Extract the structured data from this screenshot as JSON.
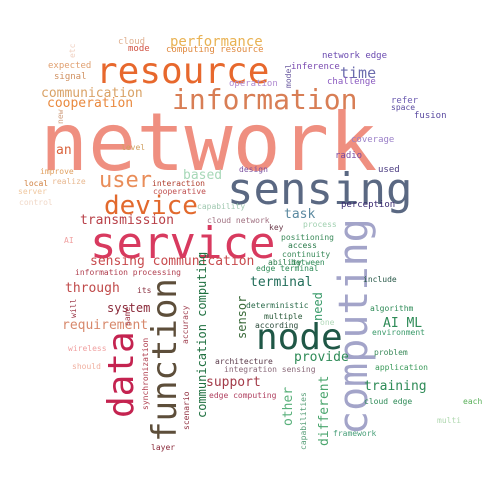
{
  "words": [
    {
      "text": "network",
      "color": "#ef8f80"
    },
    {
      "text": "sensing",
      "color": "#5a6882"
    },
    {
      "text": "service",
      "color": "#d83a5f"
    },
    {
      "text": "computing",
      "color": "#a3a4c9"
    },
    {
      "text": "resource",
      "color": "#e7682d"
    },
    {
      "text": "information",
      "color": "#d87e55"
    },
    {
      "text": "data",
      "color": "#c42350"
    },
    {
      "text": "function",
      "color": "#5d4e3a"
    },
    {
      "text": "node",
      "color": "#1f5746"
    },
    {
      "text": "device",
      "color": "#e2692d"
    },
    {
      "text": "user",
      "color": "#e98d59"
    },
    {
      "text": "performance",
      "color": "#e9b253"
    },
    {
      "text": "communication",
      "color": "#d9a266"
    },
    {
      "text": "cooperation",
      "color": "#e9893e"
    },
    {
      "text": "time",
      "color": "#6c6cae"
    },
    {
      "text": "an",
      "color": "#d9633d"
    },
    {
      "text": "sensing communication",
      "color": "#c84b4e"
    },
    {
      "text": "transmission",
      "color": "#b84048"
    },
    {
      "text": "task",
      "color": "#5a89a0"
    },
    {
      "text": "based",
      "color": "#a7d8b8"
    },
    {
      "text": "terminal",
      "color": "#236e5a"
    },
    {
      "text": "through",
      "color": "#c04a4a"
    },
    {
      "text": "system",
      "color": "#8a2a3a"
    },
    {
      "text": "requirement",
      "color": "#d7886b"
    },
    {
      "text": "AI ML",
      "color": "#2e8b57"
    },
    {
      "text": "communication computing",
      "color": "#1f7040"
    },
    {
      "text": "provide",
      "color": "#2e8b57"
    },
    {
      "text": "support",
      "color": "#a33b49"
    },
    {
      "text": "training",
      "color": "#2e8b57"
    },
    {
      "text": "other",
      "color": "#58b07a"
    },
    {
      "text": "different",
      "color": "#4aa56d"
    },
    {
      "text": "need",
      "color": "#3a9b6a"
    },
    {
      "text": "sensor",
      "color": "#3a6a3a"
    },
    {
      "text": "coverage",
      "color": "#9b80c8"
    },
    {
      "text": "radio",
      "color": "#7a4aa0"
    },
    {
      "text": "used",
      "color": "#4a3a80"
    },
    {
      "text": "perception",
      "color": "#3a2a70"
    },
    {
      "text": "fusion",
      "color": "#5a4aa0"
    },
    {
      "text": "refer",
      "color": "#6a5ab0"
    },
    {
      "text": "space",
      "color": "#5a4aa0"
    },
    {
      "text": "network edge",
      "color": "#6a4ab0"
    },
    {
      "text": "inference",
      "color": "#7a4ab0"
    },
    {
      "text": "challenge",
      "color": "#8a5ac0"
    },
    {
      "text": "operation",
      "color": "#b08ad0"
    },
    {
      "text": "model",
      "color": "#6a5aa0"
    },
    {
      "text": "cloud",
      "color": "#e0b090"
    },
    {
      "text": "mode",
      "color": "#d05040"
    },
    {
      "text": "computing resource",
      "color": "#e08a40"
    },
    {
      "text": "expected",
      "color": "#e0a070"
    },
    {
      "text": "signal",
      "color": "#d09060"
    },
    {
      "text": "etc",
      "color": "#f0d0c0"
    },
    {
      "text": "new",
      "color": "#d0a080"
    },
    {
      "text": "level",
      "color": "#d0a060"
    },
    {
      "text": "improve",
      "color": "#e0a060"
    },
    {
      "text": "local",
      "color": "#d08040"
    },
    {
      "text": "realize",
      "color": "#e8b890"
    },
    {
      "text": "server",
      "color": "#f0c8a0"
    },
    {
      "text": "control",
      "color": "#f0d8c8"
    },
    {
      "text": "interaction",
      "color": "#b04030"
    },
    {
      "text": "cooperative",
      "color": "#c05050"
    },
    {
      "text": "design",
      "color": "#7a50a0"
    },
    {
      "text": "capability",
      "color": "#a0c8b0"
    },
    {
      "text": "cloud network",
      "color": "#a07080"
    },
    {
      "text": "key",
      "color": "#6a3a4a"
    },
    {
      "text": "process",
      "color": "#a0d0b0"
    },
    {
      "text": "positioning",
      "color": "#3a8a5a"
    },
    {
      "text": "access",
      "color": "#2a7a4a"
    },
    {
      "text": "continuity",
      "color": "#3a8a5a"
    },
    {
      "text": "between",
      "color": "#2e8b57"
    },
    {
      "text": "edge terminal",
      "color": "#2e8b57"
    },
    {
      "text": "AI",
      "color": "#f0a0a0"
    },
    {
      "text": "information processing",
      "color": "#b04050"
    },
    {
      "text": "its",
      "color": "#8a3040"
    },
    {
      "text": "will",
      "color": "#a04050"
    },
    {
      "text": "deterministic",
      "color": "#2a6a4a"
    },
    {
      "text": "multiple",
      "color": "#2a5a3a"
    },
    {
      "text": "according",
      "color": "#2a4a3a"
    },
    {
      "text": "one",
      "color": "#b0d8b8"
    },
    {
      "text": "include",
      "color": "#2a5a4a"
    },
    {
      "text": "algorithm",
      "color": "#2e8b57"
    },
    {
      "text": "environment",
      "color": "#3a9a6a"
    },
    {
      "text": "problem",
      "color": "#3a8a5a"
    },
    {
      "text": "application",
      "color": "#3a9a5a"
    },
    {
      "text": "cloud edge",
      "color": "#2e8b57"
    },
    {
      "text": "each",
      "color": "#5ab05a"
    },
    {
      "text": "multi",
      "color": "#b0d8b0"
    },
    {
      "text": "framework",
      "color": "#4aa07a"
    },
    {
      "text": "capabilities",
      "color": "#5aa07a"
    },
    {
      "text": "wireless",
      "color": "#f0a0a0"
    },
    {
      "text": "should",
      "color": "#f0b0a0"
    },
    {
      "text": "synchronization",
      "color": "#b04050"
    },
    {
      "text": "same",
      "color": "#a04050"
    },
    {
      "text": "accuracy",
      "color": "#a04050"
    },
    {
      "text": "scenario",
      "color": "#903040"
    },
    {
      "text": "architecture",
      "color": "#5a3a4a"
    },
    {
      "text": "integration sensing",
      "color": "#8a6a7a"
    },
    {
      "text": "edge computing",
      "color": "#b04060"
    },
    {
      "text": "layer",
      "color": "#8a2a3a"
    },
    {
      "text": "ability",
      "color": "#2a7a4a"
    }
  ]
}
